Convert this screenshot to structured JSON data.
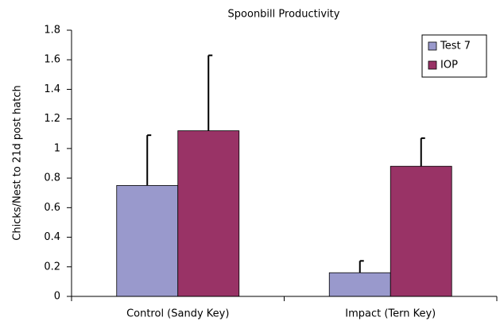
{
  "chart_data": {
    "type": "bar",
    "title": "Spoonbill Productivity",
    "y_label": "Chicks/Nest to 21d post hatch",
    "categories": [
      "Control (Sandy Key)",
      "Impact (Tern Key)"
    ],
    "series": [
      {
        "name": "Test 7",
        "color": "#9999cc",
        "values": [
          0.75,
          0.16
        ],
        "errors": [
          0.34,
          0.08
        ]
      },
      {
        "name": "IOP",
        "color": "#993366",
        "values": [
          1.12,
          0.88
        ],
        "errors": [
          0.51,
          0.19
        ]
      }
    ],
    "ylim": [
      0,
      1.8
    ],
    "yticks": [
      0,
      0.2,
      0.4,
      0.6,
      0.8,
      1,
      1.2,
      1.4,
      1.6,
      1.8
    ],
    "grid": false,
    "legend": "top-right"
  }
}
